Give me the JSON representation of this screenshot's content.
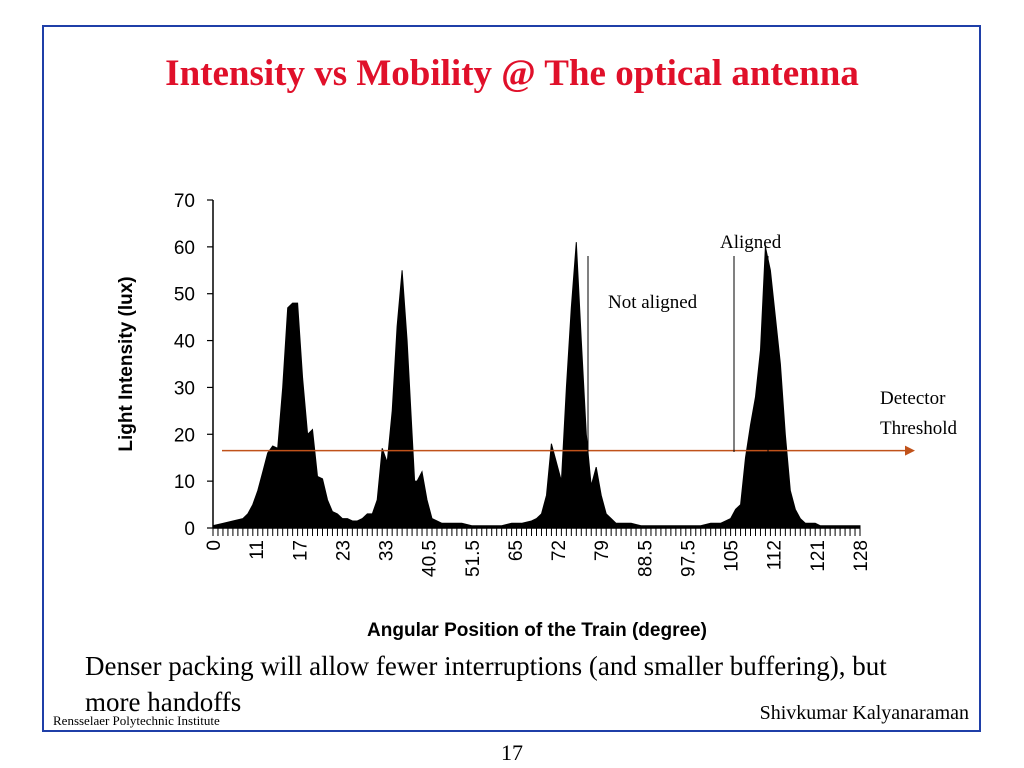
{
  "slide": {
    "title": "Intensity vs Mobility @ The optical antenna",
    "caption": "Denser packing will allow fewer interruptions (and smaller buffering), but more handoffs",
    "institute": "Rensselaer Polytechnic Institute",
    "author": "Shivkumar Kalyanaraman",
    "page_number": "17",
    "frame_color": "#1f3fa8",
    "title_color": "#e0102a"
  },
  "chart_data": {
    "type": "area",
    "xlabel": "Angular Position of the Train (degree)",
    "ylabel": "Light Intensity (lux)",
    "ylim": [
      0,
      70
    ],
    "yticks": [
      0,
      10,
      20,
      30,
      40,
      50,
      60,
      70
    ],
    "x_tick_labels": [
      "0",
      "11",
      "17",
      "23",
      "33",
      "40.5",
      "51.5",
      "65",
      "72",
      "79",
      "88.5",
      "97.5",
      "105",
      "112",
      "121",
      "128"
    ],
    "x_range": [
      0,
      130
    ],
    "fill_color": "#000000",
    "series": [
      {
        "x": [
          0,
          2,
          4,
          6,
          7,
          8,
          9,
          10,
          11,
          12,
          13,
          14,
          15,
          16,
          17,
          18,
          19,
          20,
          21,
          22,
          23,
          24,
          25,
          26,
          27,
          28,
          29,
          30,
          31,
          32,
          33,
          34,
          35,
          36,
          37,
          38,
          39,
          40,
          40.5,
          41,
          42,
          43,
          44,
          45,
          46,
          47,
          48,
          50,
          52,
          54,
          56,
          58,
          60,
          62,
          64,
          65,
          66,
          67,
          68,
          69,
          70,
          71,
          72,
          73,
          74,
          75,
          76,
          77,
          78,
          79,
          80,
          81,
          82,
          83,
          84,
          86,
          88,
          90,
          92,
          94,
          96,
          98,
          100,
          102,
          104,
          105,
          106,
          107,
          108,
          109,
          110,
          111,
          112,
          113,
          114,
          115,
          116,
          117,
          118,
          119,
          120,
          121,
          122,
          124,
          126,
          128,
          130
        ],
        "values": [
          0.5,
          1,
          1.5,
          2,
          3,
          5,
          8,
          12,
          16,
          17.5,
          17,
          30,
          47,
          48,
          48,
          32,
          20,
          21,
          11,
          10.5,
          6,
          3.5,
          3,
          2,
          2,
          1.5,
          1.5,
          2,
          3,
          3,
          6,
          17,
          14,
          25,
          43,
          55,
          40,
          20,
          10,
          10,
          12,
          6,
          2,
          1.5,
          1,
          1,
          1,
          1,
          0.5,
          0.5,
          0.5,
          0.5,
          1,
          1,
          1.5,
          2,
          3,
          7,
          18,
          14,
          10,
          30,
          47,
          61,
          40,
          20,
          9,
          13,
          7,
          3,
          2,
          1,
          1,
          1,
          1,
          0.5,
          0.5,
          0.5,
          0.5,
          0.5,
          0.5,
          0.5,
          1,
          1,
          2,
          4,
          5,
          15,
          22,
          28,
          38,
          60,
          55,
          45,
          35,
          20,
          8,
          4,
          2,
          1,
          1,
          1,
          0.5,
          0.5,
          0.5,
          0.5,
          0.5
        ]
      }
    ],
    "annotations": {
      "not_aligned": "Not aligned",
      "aligned": "Aligned",
      "detector_line1": "Detector",
      "detector_line2": "Threshold"
    },
    "threshold": {
      "value": 16.5,
      "color": "#c0521a"
    }
  }
}
